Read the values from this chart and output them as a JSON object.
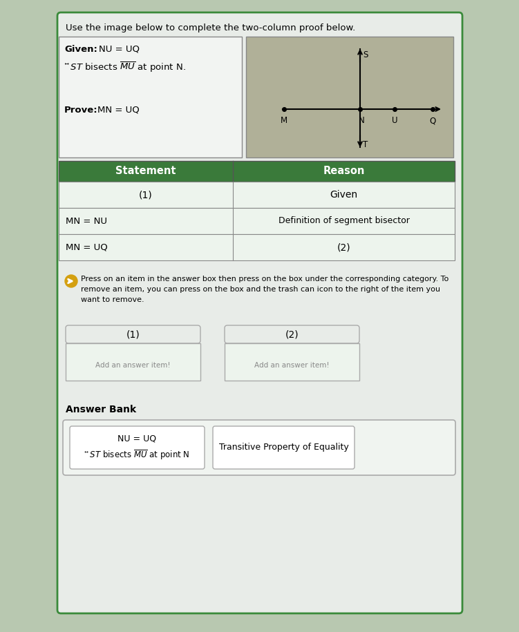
{
  "page_bg": "#b8c8b0",
  "outer_bg": "#e8ece8",
  "title_text": "Use the image below to complete the two-column proof below.",
  "header_bg": "#3a7a3a",
  "header_text_color": "#ffffff",
  "header_statement": "Statement",
  "header_reason": "Reason",
  "row1_statement": "(1)",
  "row1_reason": "Given",
  "row2_statement": "MN = NU",
  "row2_reason": "Definition of segment bisector",
  "row3_statement": "MN = UQ",
  "row3_reason": "(2)",
  "outer_border_color": "#3a8a3a",
  "diagram_bg": "#b0b098",
  "left_box_bg": "#e8ece8",
  "table_row_bg_light": "#e8f0e8",
  "table_row_bg_white": "#f0f4f0",
  "separator_color": "#999999",
  "ans_box_bg": "#e8ece8",
  "bank_bg": "#e8ece8"
}
